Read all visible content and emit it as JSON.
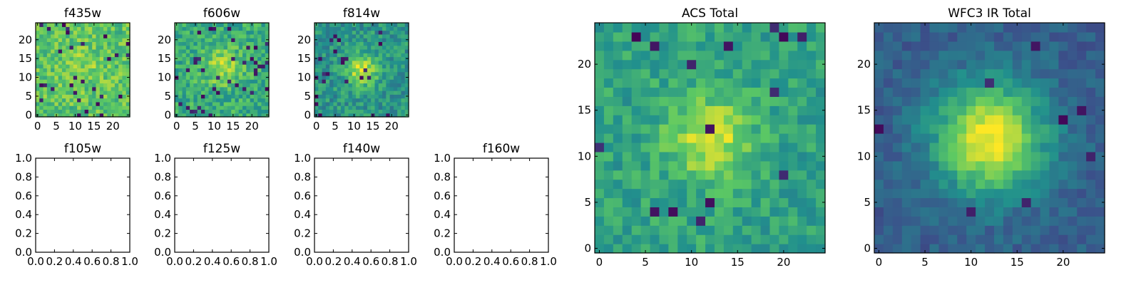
{
  "figure": {
    "colormap": "viridis",
    "colormap_stops": [
      "#440154",
      "#3b528b",
      "#21908d",
      "#5dc963",
      "#fde725"
    ]
  },
  "chart_data": [
    {
      "id": "f435w",
      "type": "heatmap",
      "title": "f435w",
      "grid": false,
      "size": 25,
      "xlim": [
        -0.5,
        24.5
      ],
      "ylim": [
        -0.5,
        24.5
      ],
      "xticks": [
        0,
        5,
        10,
        15,
        20
      ],
      "yticks": [
        0,
        5,
        10,
        15,
        20
      ],
      "xtick_labels": [
        "0",
        "5",
        "10",
        "15",
        "20"
      ],
      "ytick_labels": [
        "0",
        "5",
        "10",
        "15",
        "20"
      ],
      "data_model": {
        "peak": [
          12,
          13
        ],
        "background": 0.72,
        "amplitude": 0.08,
        "sigma": 4,
        "noise": 0.15,
        "dark_pixel_rate": 0.04,
        "seed": 11
      }
    },
    {
      "id": "f606w",
      "type": "heatmap",
      "title": "f606w",
      "grid": false,
      "size": 25,
      "xlim": [
        -0.5,
        24.5
      ],
      "ylim": [
        -0.5,
        24.5
      ],
      "xticks": [
        0,
        5,
        10,
        15,
        20
      ],
      "yticks": [
        0,
        5,
        10,
        15,
        20
      ],
      "xtick_labels": [
        "0",
        "5",
        "10",
        "15",
        "20"
      ],
      "ytick_labels": [
        "0",
        "5",
        "10",
        "15",
        "20"
      ],
      "data_model": {
        "peak": [
          12,
          13
        ],
        "background": 0.62,
        "amplitude": 0.25,
        "sigma": 3.5,
        "noise": 0.15,
        "dark_pixel_rate": 0.05,
        "seed": 23
      }
    },
    {
      "id": "f814w",
      "type": "heatmap",
      "title": "f814w",
      "grid": false,
      "size": 25,
      "xlim": [
        -0.5,
        24.5
      ],
      "ylim": [
        -0.5,
        24.5
      ],
      "xticks": [
        0,
        5,
        10,
        15,
        20
      ],
      "yticks": [
        0,
        5,
        10,
        15,
        20
      ],
      "xtick_labels": [
        "0",
        "5",
        "10",
        "15",
        "20"
      ],
      "ytick_labels": [
        "0",
        "5",
        "10",
        "15",
        "20"
      ],
      "data_model": {
        "peak": [
          12,
          12
        ],
        "background": 0.52,
        "amplitude": 0.4,
        "sigma": 3,
        "noise": 0.14,
        "dark_pixel_rate": 0.04,
        "seed": 37
      }
    },
    {
      "id": "f105w",
      "type": "heatmap",
      "title": "f105w",
      "empty": true,
      "grid": false,
      "xlim": [
        0,
        1
      ],
      "ylim": [
        0,
        1
      ],
      "xticks": [
        0,
        0.2,
        0.4,
        0.6,
        0.8,
        1
      ],
      "yticks": [
        0,
        0.2,
        0.4,
        0.6,
        0.8,
        1
      ],
      "xtick_labels": [
        "0.0",
        "0.2",
        "0.4",
        "0.6",
        "0.8",
        "1.0"
      ],
      "ytick_labels": [
        "0.0",
        "0.2",
        "0.4",
        "0.6",
        "0.8",
        "1.0"
      ]
    },
    {
      "id": "f125w",
      "type": "heatmap",
      "title": "f125w",
      "empty": true,
      "grid": false,
      "xlim": [
        0,
        1
      ],
      "ylim": [
        0,
        1
      ],
      "xticks": [
        0,
        0.2,
        0.4,
        0.6,
        0.8,
        1
      ],
      "yticks": [
        0,
        0.2,
        0.4,
        0.6,
        0.8,
        1
      ],
      "xtick_labels": [
        "0.0",
        "0.2",
        "0.4",
        "0.6",
        "0.8",
        "1.0"
      ],
      "ytick_labels": [
        "0.0",
        "0.2",
        "0.4",
        "0.6",
        "0.8",
        "1.0"
      ]
    },
    {
      "id": "f140w",
      "type": "heatmap",
      "title": "f140w",
      "empty": true,
      "grid": false,
      "xlim": [
        0,
        1
      ],
      "ylim": [
        0,
        1
      ],
      "xticks": [
        0,
        0.2,
        0.4,
        0.6,
        0.8,
        1
      ],
      "yticks": [
        0,
        0.2,
        0.4,
        0.6,
        0.8,
        1
      ],
      "xtick_labels": [
        "0.0",
        "0.2",
        "0.4",
        "0.6",
        "0.8",
        "1.0"
      ],
      "ytick_labels": [
        "0.0",
        "0.2",
        "0.4",
        "0.6",
        "0.8",
        "1.0"
      ]
    },
    {
      "id": "f160w",
      "type": "heatmap",
      "title": "f160w",
      "empty": true,
      "grid": false,
      "xlim": [
        0,
        1
      ],
      "ylim": [
        0,
        1
      ],
      "xticks": [
        0,
        0.2,
        0.4,
        0.6,
        0.8,
        1
      ],
      "yticks": [
        0,
        0.2,
        0.4,
        0.6,
        0.8,
        1
      ],
      "xtick_labels": [
        "0.0",
        "0.2",
        "0.4",
        "0.6",
        "0.8",
        "1.0"
      ],
      "ytick_labels": [
        "0.0",
        "0.2",
        "0.4",
        "0.6",
        "0.8",
        "1.0"
      ]
    },
    {
      "id": "acs-total",
      "type": "heatmap",
      "title": "ACS Total",
      "grid": false,
      "size": 25,
      "xlim": [
        -0.5,
        24.5
      ],
      "ylim": [
        -0.5,
        24.5
      ],
      "xticks": [
        0,
        5,
        10,
        15,
        20
      ],
      "yticks": [
        0,
        5,
        10,
        15,
        20
      ],
      "xtick_labels": [
        "0",
        "5",
        "10",
        "15",
        "20"
      ],
      "ytick_labels": [
        "0",
        "5",
        "10",
        "15",
        "20"
      ],
      "data_model": {
        "peak": [
          12,
          12
        ],
        "background": 0.58,
        "amplitude": 0.35,
        "sigma": 3.2,
        "noise": 0.12,
        "dark_pixel_rate": 0.03,
        "seed": 53
      }
    },
    {
      "id": "wfc3-ir-total",
      "type": "heatmap",
      "title": "WFC3 IR Total",
      "grid": false,
      "size": 25,
      "xlim": [
        -0.5,
        24.5
      ],
      "ylim": [
        -0.5,
        24.5
      ],
      "xticks": [
        0,
        5,
        10,
        15,
        20
      ],
      "yticks": [
        0,
        5,
        10,
        15,
        20
      ],
      "xtick_labels": [
        "0",
        "5",
        "10",
        "15",
        "20"
      ],
      "ytick_labels": [
        "0",
        "5",
        "10",
        "15",
        "20"
      ],
      "data_model": {
        "peak": [
          12,
          12
        ],
        "background": 0.3,
        "amplitude": 0.7,
        "sigma": 4.2,
        "noise": 0.08,
        "dark_pixel_rate": 0.01,
        "seed": 71
      }
    }
  ]
}
